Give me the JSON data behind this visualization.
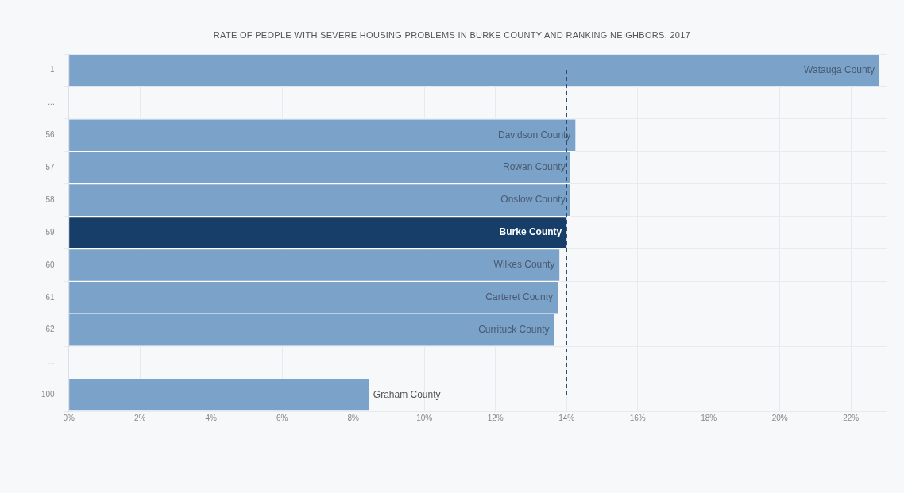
{
  "chart_data": {
    "type": "bar",
    "orientation": "horizontal",
    "title": "RATE OF PEOPLE WITH SEVERE HOUSING PROBLEMS IN BURKE COUNTY AND RANKING NEIGHBORS, 2017",
    "categories": [
      "1",
      "...",
      "56",
      "57",
      "58",
      "59",
      "60",
      "61",
      "62",
      "...",
      "100"
    ],
    "values": [
      22.8,
      null,
      14.25,
      14.1,
      14.1,
      14.0,
      13.8,
      13.75,
      13.65,
      null,
      8.45
    ],
    "colors": [
      "#7ba3c9",
      "#7ba3c9",
      "#7ba3c9",
      "#7ba3c9",
      "#7ba3c9",
      "#163e68",
      "#7ba3c9",
      "#7ba3c9",
      "#7ba3c9",
      "#7ba3c9",
      "#7ba3c9"
    ],
    "xlim": [
      0,
      23
    ],
    "xticks": [
      {
        "value": 0,
        "label": "0%"
      },
      {
        "value": 2,
        "label": "2%"
      },
      {
        "value": 4,
        "label": "4%"
      },
      {
        "value": 6,
        "label": "6%"
      },
      {
        "value": 8,
        "label": "8%"
      },
      {
        "value": 10,
        "label": "10%"
      },
      {
        "value": 12,
        "label": "12%"
      },
      {
        "value": 14,
        "label": "14%"
      },
      {
        "value": 16,
        "label": "16%"
      },
      {
        "value": 18,
        "label": "18%"
      },
      {
        "value": 20,
        "label": "20%"
      },
      {
        "value": 22,
        "label": "22%"
      }
    ],
    "annotations": [
      {
        "text": "Watauga County",
        "x": 22.8,
        "y": "1"
      },
      {
        "text": "Davidson County",
        "x": 14.25,
        "y": "56"
      },
      {
        "text": "Rowan County",
        "x": 14.1,
        "y": "57"
      },
      {
        "text": "Onslow County",
        "x": 14.1,
        "y": "58"
      },
      {
        "text": "Burke County",
        "x": 14.0,
        "y": "59"
      },
      {
        "text": "Wilkes County",
        "x": 13.8,
        "y": "60"
      },
      {
        "text": "Carteret County",
        "x": 13.75,
        "y": "61"
      },
      {
        "text": "Currituck County",
        "x": 13.65,
        "y": "62"
      },
      {
        "text": "Graham County",
        "x": 8.45,
        "y": "100"
      }
    ],
    "ref_lines": [
      {
        "axis": "x",
        "value": 14,
        "color": "#2d4a6e",
        "line_style": "dashed"
      }
    ],
    "grid": true,
    "legend": false
  }
}
